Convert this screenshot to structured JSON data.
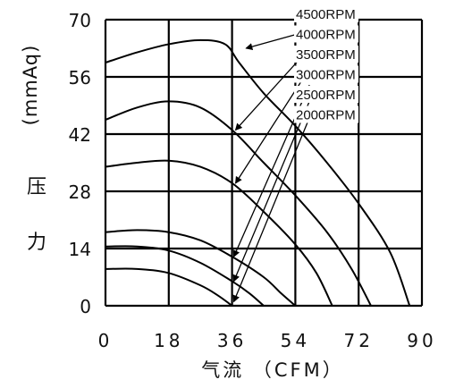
{
  "chart_data": {
    "type": "line",
    "title": "",
    "xlabel": "气流 （CFM）",
    "ylabel_chars": [
      "压",
      "力",
      "(mmAq)"
    ],
    "xlim": [
      0,
      90
    ],
    "ylim": [
      0,
      70
    ],
    "x_ticks": [
      "0",
      "18",
      "36",
      "54",
      "72",
      "90"
    ],
    "y_ticks": [
      "0",
      "14",
      "28",
      "42",
      "56",
      "70"
    ],
    "x_tick_values": [
      0,
      18,
      36,
      54,
      72,
      90
    ],
    "y_tick_values": [
      0,
      14,
      28,
      42,
      56,
      70
    ],
    "grid": true,
    "legend_position": "top-right",
    "series": [
      {
        "name": "4500RPM",
        "points": [
          [
            0,
            59.5
          ],
          [
            9,
            62
          ],
          [
            18,
            64
          ],
          [
            27,
            65
          ],
          [
            34,
            64
          ],
          [
            38,
            59.5
          ],
          [
            45,
            52
          ],
          [
            54,
            44
          ],
          [
            63,
            35
          ],
          [
            72,
            25
          ],
          [
            81,
            13
          ],
          [
            86.5,
            0
          ]
        ]
      },
      {
        "name": "4000RPM",
        "points": [
          [
            0,
            45.5
          ],
          [
            9,
            48.5
          ],
          [
            18,
            50
          ],
          [
            27,
            48.5
          ],
          [
            36,
            43
          ],
          [
            45,
            35
          ],
          [
            54,
            27
          ],
          [
            63,
            18
          ],
          [
            70,
            9
          ],
          [
            75.5,
            0
          ]
        ]
      },
      {
        "name": "3500RPM",
        "points": [
          [
            0,
            34
          ],
          [
            9,
            35
          ],
          [
            18,
            35.5
          ],
          [
            27,
            34
          ],
          [
            36,
            30
          ],
          [
            45,
            23
          ],
          [
            54,
            15
          ],
          [
            60,
            8
          ],
          [
            64.5,
            0
          ]
        ]
      },
      {
        "name": "3000RPM",
        "points": [
          [
            0,
            18
          ],
          [
            9,
            18.5
          ],
          [
            18,
            18
          ],
          [
            27,
            16
          ],
          [
            36,
            12
          ],
          [
            45,
            7
          ],
          [
            50,
            3
          ],
          [
            54,
            0
          ]
        ]
      },
      {
        "name": "2500RPM",
        "points": [
          [
            0,
            14.5
          ],
          [
            9,
            14.5
          ],
          [
            18,
            13.5
          ],
          [
            27,
            10.5
          ],
          [
            36,
            6
          ],
          [
            41,
            3
          ],
          [
            45,
            0
          ]
        ]
      },
      {
        "name": "2000RPM",
        "points": [
          [
            0,
            9
          ],
          [
            9,
            9
          ],
          [
            18,
            8
          ],
          [
            27,
            5
          ],
          [
            32,
            2.5
          ],
          [
            36,
            0
          ]
        ]
      }
    ],
    "annotation_arrows": [
      {
        "label": "4500RPM",
        "from": [
          61,
          68
        ],
        "to": [
          40,
          63
        ]
      },
      {
        "label": "4000RPM",
        "from": [
          58,
          63
        ],
        "to": [
          37,
          43
        ]
      },
      {
        "label": "3500RPM",
        "from": [
          58,
          58
        ],
        "to": [
          37,
          30
        ]
      },
      {
        "label": "3000RPM",
        "from": [
          58,
          54
        ],
        "to": [
          36.5,
          12
        ]
      },
      {
        "label": "2500RPM",
        "from": [
          58,
          50
        ],
        "to": [
          36.5,
          6
        ]
      },
      {
        "label": "2000RPM",
        "from": [
          58,
          46
        ],
        "to": [
          36.5,
          1
        ]
      }
    ],
    "colors": {
      "line": "#000000",
      "grid": "#000000",
      "background": "#ffffff"
    }
  }
}
